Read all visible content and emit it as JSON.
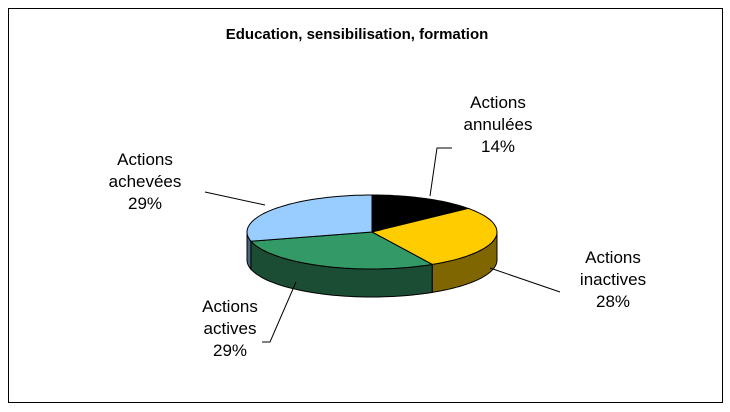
{
  "chart_data": {
    "type": "pie3d",
    "title": "Education, sensibilisation, formation",
    "categories": [
      "Actions annulées",
      "Actions inactives",
      "Actions actives",
      "Actions achevées"
    ],
    "values": [
      14,
      28,
      29,
      29
    ],
    "value_labels": [
      "14%",
      "28%",
      "29%",
      "29%"
    ],
    "colors": [
      "#000000",
      "#ffcc00",
      "#339966",
      "#99ccff"
    ]
  }
}
